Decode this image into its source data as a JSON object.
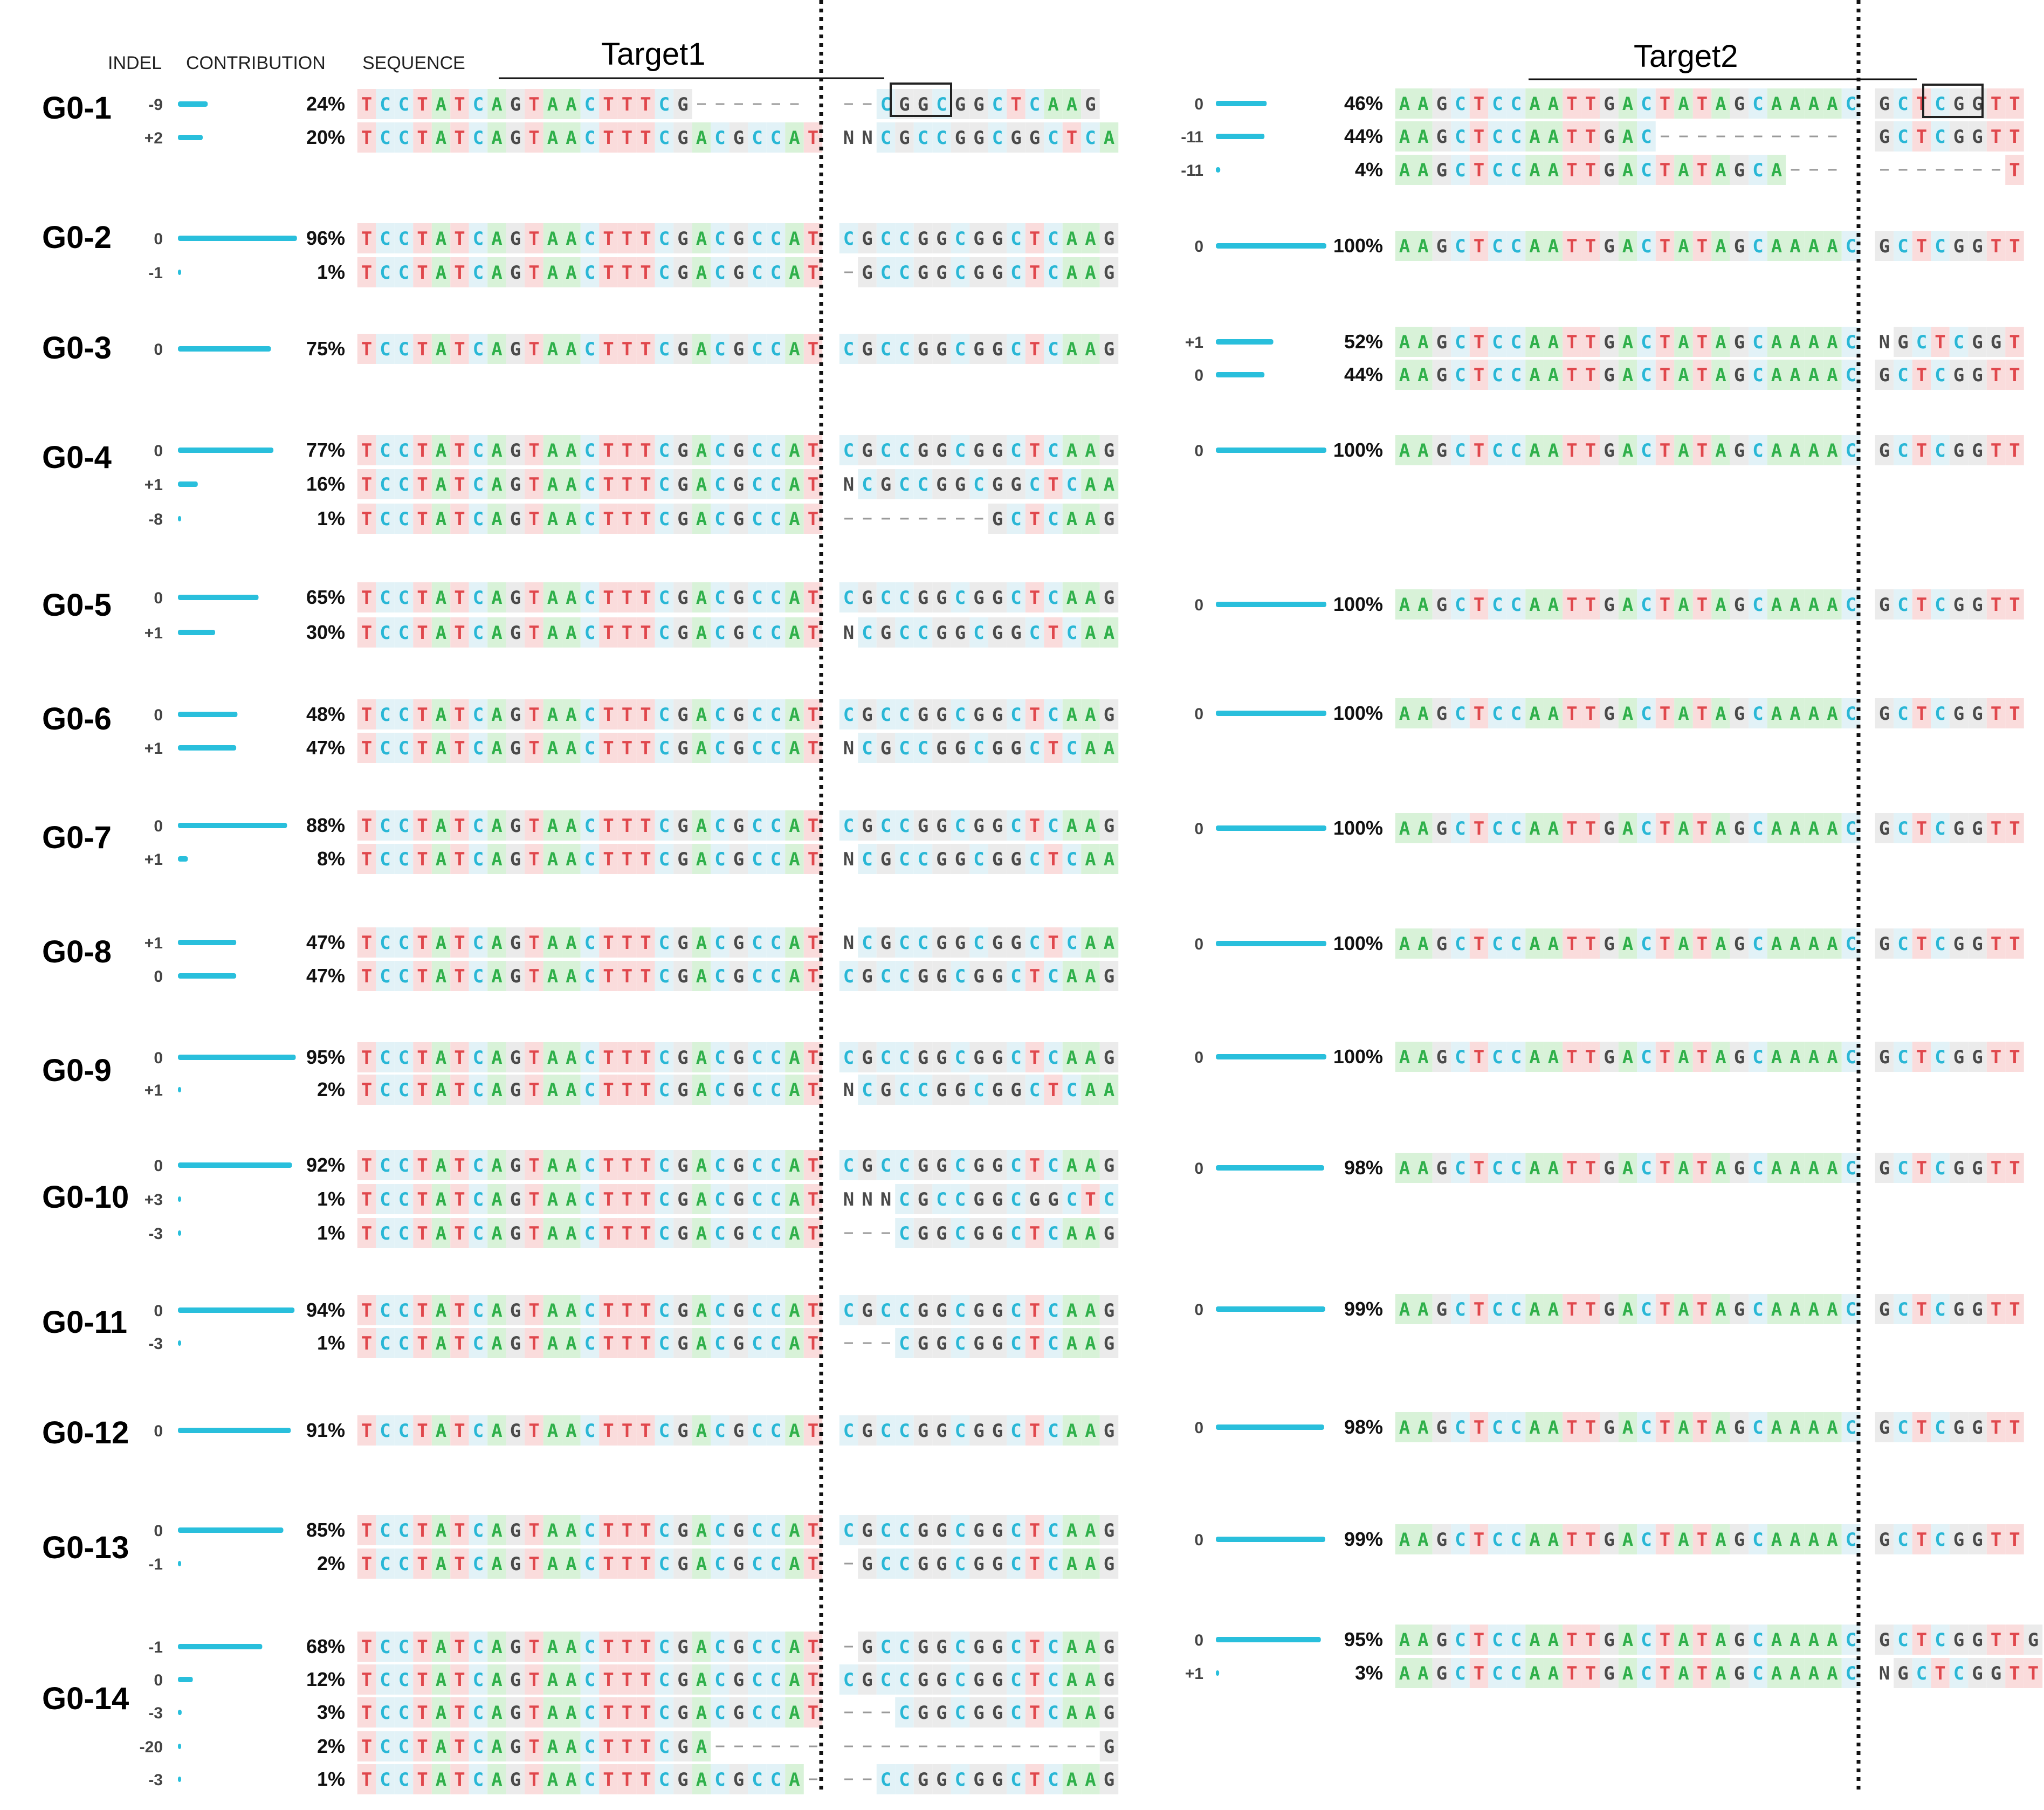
{
  "header": {
    "indel_label": "INDEL",
    "contribution_label": "CONTRIBUTION",
    "sequence_label": "SEQUENCE",
    "target1_label": "Target1",
    "target2_label": "Target2"
  },
  "colors": {
    "bar": "#29BFDC",
    "A_text": "#2FB04A",
    "C_text": "#29B7D6",
    "G_text": "#4A4A4A",
    "T_text": "#E0474C",
    "N_text": "#4A4A4A",
    "A_bg": "#D8F2D8",
    "C_bg": "#E2F2F7",
    "G_bg": "#EBEBEB",
    "T_bg": "#FADCDC",
    "N_bg": "#FFFFFF",
    "pam_box": "#222222",
    "divider": "#111111",
    "title": "#000000",
    "label": "#222222"
  },
  "groups": [
    {
      "name": "G0-1",
      "t1": [
        {
          "indel": "-9",
          "pct": "24%",
          "left": "TCCTATCAGTAACTTTCG------",
          "right": "--CGGCGGCTCAAG"
        },
        {
          "indel": "+2",
          "pct": "20%",
          "left": "TCCTATCAGTAACTTTCGACGCCAT",
          "right": "NNCGCCGGCGGCTCA"
        }
      ],
      "t2": [
        {
          "indel": "0",
          "pct": "46%",
          "left": "AAGCTCCAATTGACTATAGCAAAAC",
          "right": "GCTCGGTT"
        },
        {
          "indel": "-11",
          "pct": "44%",
          "left": "AAGCTCCAATTGAC----------",
          "right": "GCTCGGTT"
        },
        {
          "indel": "-11",
          "pct": "4%",
          "left": "AAGCTCCAATTGACTATAGCA---",
          "right": "-------T"
        }
      ]
    },
    {
      "name": "G0-2",
      "t1": [
        {
          "indel": "0",
          "pct": "96%",
          "left": "TCCTATCAGTAACTTTCGACGCCAT",
          "right": "CGCCGGCGGCTCAAG"
        },
        {
          "indel": "-1",
          "pct": "1%",
          "left": "TCCTATCAGTAACTTTCGACGCCAT",
          "right": "-GCCGGCGGCTCAAG"
        }
      ],
      "t2": [
        {
          "indel": "0",
          "pct": "100%",
          "left": "AAGCTCCAATTGACTATAGCAAAAC",
          "right": "GCTCGGTT"
        }
      ]
    },
    {
      "name": "G0-3",
      "t1": [
        {
          "indel": "0",
          "pct": "75%",
          "left": "TCCTATCAGTAACTTTCGACGCCAT",
          "right": "CGCCGGCGGCTCAAG"
        }
      ],
      "t2": [
        {
          "indel": "+1",
          "pct": "52%",
          "left": "AAGCTCCAATTGACTATAGCAAAAC",
          "right": "NGCTCGGT"
        },
        {
          "indel": "0",
          "pct": "44%",
          "left": "AAGCTCCAATTGACTATAGCAAAAC",
          "right": "GCTCGGTT"
        }
      ]
    },
    {
      "name": "G0-4",
      "t1": [
        {
          "indel": "0",
          "pct": "77%",
          "left": "TCCTATCAGTAACTTTCGACGCCAT",
          "right": "CGCCGGCGGCTCAAG"
        },
        {
          "indel": "+1",
          "pct": "16%",
          "left": "TCCTATCAGTAACTTTCGACGCCAT",
          "right": "NCGCCGGCGGCTCAA"
        },
        {
          "indel": "-8",
          "pct": "1%",
          "left": "TCCTATCAGTAACTTTCGACGCCAT",
          "right": "--------GCTCAAG"
        }
      ],
      "t2": [
        {
          "indel": "0",
          "pct": "100%",
          "left": "AAGCTCCAATTGACTATAGCAAAAC",
          "right": "GCTCGGTT"
        }
      ]
    },
    {
      "name": "G0-5",
      "t1": [
        {
          "indel": "0",
          "pct": "65%",
          "left": "TCCTATCAGTAACTTTCGACGCCAT",
          "right": "CGCCGGCGGCTCAAG"
        },
        {
          "indel": "+1",
          "pct": "30%",
          "left": "TCCTATCAGTAACTTTCGACGCCAT",
          "right": "NCGCCGGCGGCTCAA"
        }
      ],
      "t2": [
        {
          "indel": "0",
          "pct": "100%",
          "left": "AAGCTCCAATTGACTATAGCAAAAC",
          "right": "GCTCGGTT"
        }
      ]
    },
    {
      "name": "G0-6",
      "t1": [
        {
          "indel": "0",
          "pct": "48%",
          "left": "TCCTATCAGTAACTTTCGACGCCAT",
          "right": "CGCCGGCGGCTCAAG"
        },
        {
          "indel": "+1",
          "pct": "47%",
          "left": "TCCTATCAGTAACTTTCGACGCCAT",
          "right": "NCGCCGGCGGCTCAA"
        }
      ],
      "t2": [
        {
          "indel": "0",
          "pct": "100%",
          "left": "AAGCTCCAATTGACTATAGCAAAAC",
          "right": "GCTCGGTT"
        }
      ]
    },
    {
      "name": "G0-7",
      "t1": [
        {
          "indel": "0",
          "pct": "88%",
          "left": "TCCTATCAGTAACTTTCGACGCCAT",
          "right": "CGCCGGCGGCTCAAG"
        },
        {
          "indel": "+1",
          "pct": "8%",
          "left": "TCCTATCAGTAACTTTCGACGCCAT",
          "right": "NCGCCGGCGGCTCAA"
        }
      ],
      "t2": [
        {
          "indel": "0",
          "pct": "100%",
          "left": "AAGCTCCAATTGACTATAGCAAAAC",
          "right": "GCTCGGTT"
        }
      ]
    },
    {
      "name": "G0-8",
      "t1": [
        {
          "indel": "+1",
          "pct": "47%",
          "left": "TCCTATCAGTAACTTTCGACGCCAT",
          "right": "NCGCCGGCGGCTCAA"
        },
        {
          "indel": "0",
          "pct": "47%",
          "left": "TCCTATCAGTAACTTTCGACGCCAT",
          "right": "CGCCGGCGGCTCAAG"
        }
      ],
      "t2": [
        {
          "indel": "0",
          "pct": "100%",
          "left": "AAGCTCCAATTGACTATAGCAAAAC",
          "right": "GCTCGGTT"
        }
      ]
    },
    {
      "name": "G0-9",
      "t1": [
        {
          "indel": "0",
          "pct": "95%",
          "left": "TCCTATCAGTAACTTTCGACGCCAT",
          "right": "CGCCGGCGGCTCAAG"
        },
        {
          "indel": "+1",
          "pct": "2%",
          "left": "TCCTATCAGTAACTTTCGACGCCAT",
          "right": "NCGCCGGCGGCTCAA"
        }
      ],
      "t2": [
        {
          "indel": "0",
          "pct": "100%",
          "left": "AAGCTCCAATTGACTATAGCAAAAC",
          "right": "GCTCGGTT"
        }
      ]
    },
    {
      "name": "G0-10",
      "t1": [
        {
          "indel": "0",
          "pct": "92%",
          "left": "TCCTATCAGTAACTTTCGACGCCAT",
          "right": "CGCCGGCGGCTCAAG"
        },
        {
          "indel": "+3",
          "pct": "1%",
          "left": "TCCTATCAGTAACTTTCGACGCCAT",
          "right": "NNNCGCCGGCGGCTC"
        },
        {
          "indel": "-3",
          "pct": "1%",
          "left": "TCCTATCAGTAACTTTCGACGCCAT",
          "right": "---CGGCGGCTCAAG"
        }
      ],
      "t2": [
        {
          "indel": "0",
          "pct": "98%",
          "left": "AAGCTCCAATTGACTATAGCAAAAC",
          "right": "GCTCGGTT"
        }
      ]
    },
    {
      "name": "G0-11",
      "t1": [
        {
          "indel": "0",
          "pct": "94%",
          "left": "TCCTATCAGTAACTTTCGACGCCAT",
          "right": "CGCCGGCGGCTCAAG"
        },
        {
          "indel": "-3",
          "pct": "1%",
          "left": "TCCTATCAGTAACTTTCGACGCCAT",
          "right": "---CGGCGGCTCAAG"
        }
      ],
      "t2": [
        {
          "indel": "0",
          "pct": "99%",
          "left": "AAGCTCCAATTGACTATAGCAAAAC",
          "right": "GCTCGGTT"
        }
      ]
    },
    {
      "name": "G0-12",
      "t1": [
        {
          "indel": "0",
          "pct": "91%",
          "left": "TCCTATCAGTAACTTTCGACGCCAT",
          "right": "CGCCGGCGGCTCAAG"
        }
      ],
      "t2": [
        {
          "indel": "0",
          "pct": "98%",
          "left": "AAGCTCCAATTGACTATAGCAAAAC",
          "right": "GCTCGGTT"
        }
      ]
    },
    {
      "name": "G0-13",
      "t1": [
        {
          "indel": "0",
          "pct": "85%",
          "left": "TCCTATCAGTAACTTTCGACGCCAT",
          "right": "CGCCGGCGGCTCAAG"
        },
        {
          "indel": "-1",
          "pct": "2%",
          "left": "TCCTATCAGTAACTTTCGACGCCAT",
          "right": "-GCCGGCGGCTCAAG"
        }
      ],
      "t2": [
        {
          "indel": "0",
          "pct": "99%",
          "left": "AAGCTCCAATTGACTATAGCAAAAC",
          "right": "GCTCGGTT"
        }
      ]
    },
    {
      "name": "G0-14",
      "t1": [
        {
          "indel": "-1",
          "pct": "68%",
          "left": "TCCTATCAGTAACTTTCGACGCCAT",
          "right": "-GCCGGCGGCTCAAG"
        },
        {
          "indel": "0",
          "pct": "12%",
          "left": "TCCTATCAGTAACTTTCGACGCCAT",
          "right": "CGCCGGCGGCTCAAG"
        },
        {
          "indel": "-3",
          "pct": "3%",
          "left": "TCCTATCAGTAACTTTCGACGCCAT",
          "right": "---CGGCGGCTCAAG"
        },
        {
          "indel": "-20",
          "pct": "2%",
          "left": "TCCTATCAGTAACTTTCGA------",
          "right": "--------------G"
        },
        {
          "indel": "-3",
          "pct": "1%",
          "left": "TCCTATCAGTAACTTTCGACGCCA-",
          "right": "--CCGGCGGCTCAAG"
        }
      ],
      "t2": [
        {
          "indel": "0",
          "pct": "95%",
          "left": "AAGCTCCAATTGACTATAGCAAAAC",
          "right": "GCTCGGTTG"
        },
        {
          "indel": "+1",
          "pct": "3%",
          "left": "AAGCTCCAATTGACTATAGCAAAAC",
          "right": "NGCTCGGTT"
        }
      ]
    }
  ]
}
